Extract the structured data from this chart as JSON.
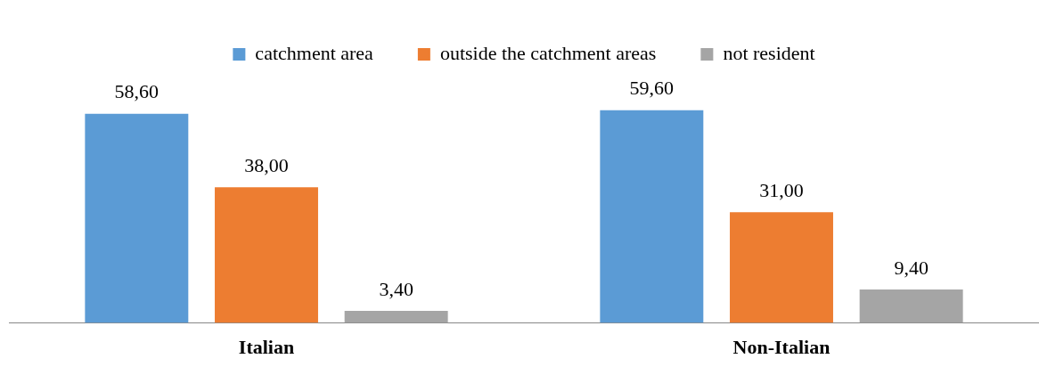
{
  "chart_data": {
    "type": "bar",
    "categories": [
      "Italian",
      "Non-Italian"
    ],
    "series": [
      {
        "name": "catchment area",
        "color": "#5b9bd5",
        "values": [
          58.6,
          59.6
        ],
        "value_labels": [
          "58,60",
          "59,60"
        ]
      },
      {
        "name": "outside the catchment areas",
        "color": "#ed7d31",
        "values": [
          38.0,
          31.0
        ],
        "value_labels": [
          "38,00",
          "31,00"
        ]
      },
      {
        "name": "not resident",
        "color": "#a5a5a5",
        "values": [
          3.4,
          9.4
        ],
        "value_labels": [
          "3,40",
          "9,40"
        ]
      }
    ],
    "legend": "top",
    "grid": false
  }
}
